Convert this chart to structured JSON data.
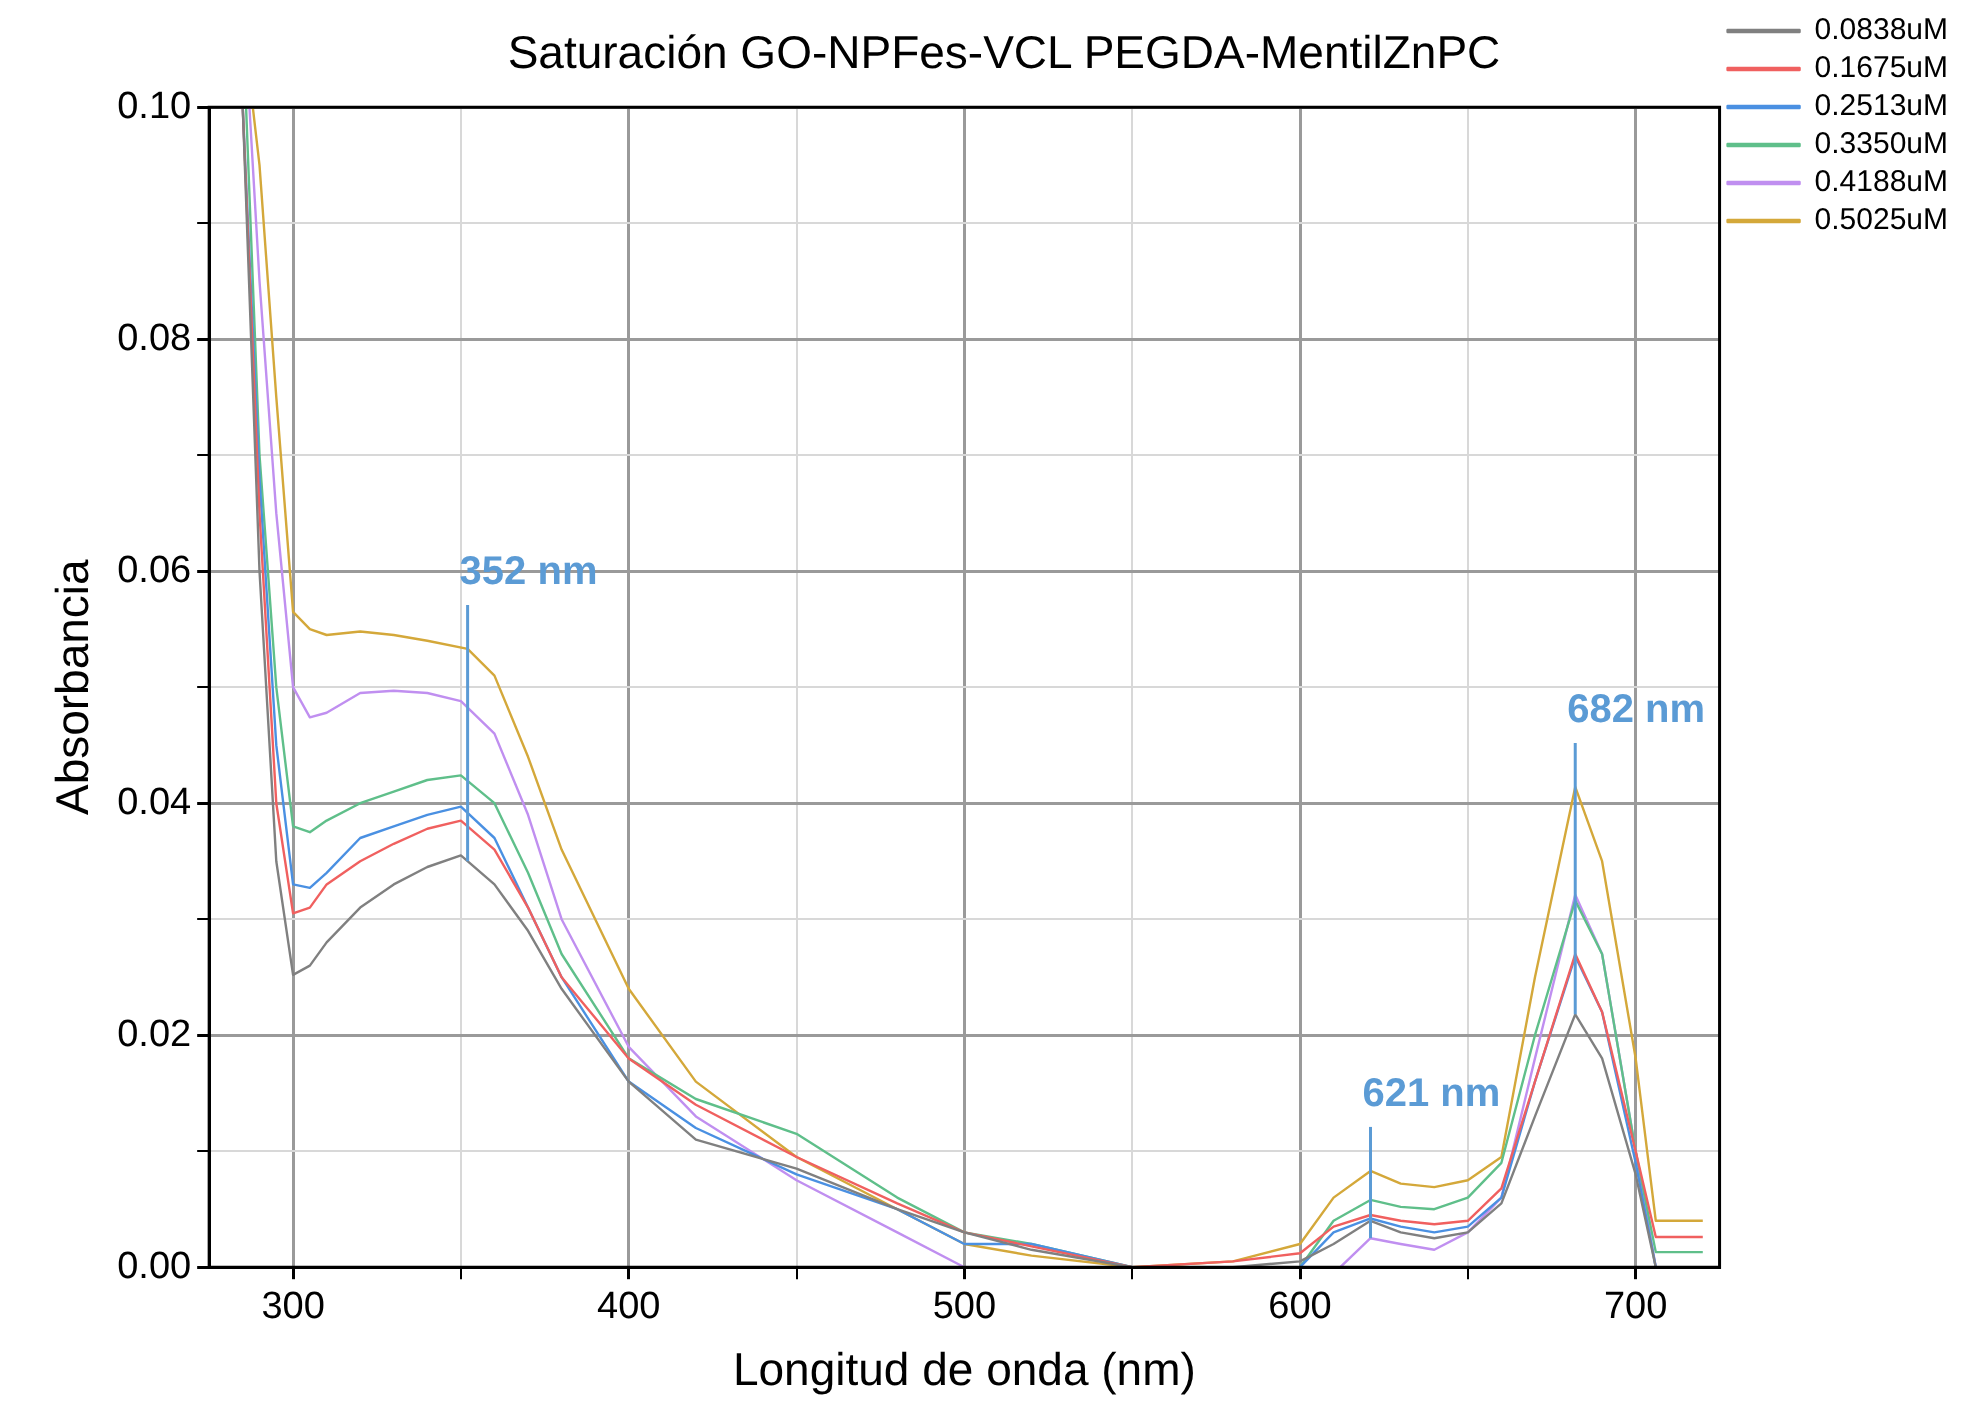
{
  "chart_data": {
    "type": "line",
    "title": "Saturación GO-NPFes-VCL PEGDA-MentilZnPC",
    "xlabel": "Longitud de onda (nm)",
    "ylabel": "Absorbancia",
    "xlim": [
      275,
      725
    ],
    "ylim": [
      0,
      0.1
    ],
    "xticks": [
      300,
      {
        "value": 350,
        "label": null
      },
      400,
      {
        "value": 450,
        "label": null
      },
      500,
      {
        "value": 550,
        "label": null
      },
      600,
      {
        "value": 650,
        "label": null
      },
      700
    ],
    "yticks": [
      {
        "value": 0,
        "label": "0.00"
      },
      {
        "value": 0.01,
        "label": null
      },
      {
        "value": 0.02,
        "label": "0.02"
      },
      {
        "value": 0.03,
        "label": null
      },
      {
        "value": 0.04,
        "label": "0.04"
      },
      {
        "value": 0.05,
        "label": null
      },
      {
        "value": 0.06,
        "label": "0.06"
      },
      {
        "value": 0.07,
        "label": null
      },
      {
        "value": 0.08,
        "label": "0.08"
      },
      {
        "value": 0.09,
        "label": null
      },
      {
        "value": 0.1,
        "label": "0.10"
      }
    ],
    "grid": true,
    "legend": "top right",
    "marker": "none",
    "line_style": "solid",
    "annotations": [
      {
        "text": "352 nm",
        "x": 352,
        "y": 0.0533
      },
      {
        "text": "621 nm",
        "x": 621,
        "y": 0.0083
      },
      {
        "text": "682 nm",
        "x": 682,
        "y": 0.0414
      }
    ],
    "series": [
      {
        "name": "0.0838uM",
        "color": "#808080",
        "x": [
          285,
          290,
          295,
          300,
          305,
          310,
          320,
          330,
          340,
          350,
          360,
          370,
          380,
          400,
          420,
          450,
          480,
          500,
          520,
          550,
          580,
          600,
          610,
          621,
          630,
          640,
          650,
          660,
          670,
          682,
          690,
          700,
          706,
          720
        ],
        "values": [
          0.1,
          0.06,
          0.035,
          0.0252,
          0.026,
          0.028,
          0.031,
          0.033,
          0.0345,
          0.0355,
          0.033,
          0.029,
          0.024,
          0.016,
          0.011,
          0.0085,
          0.005,
          0.003,
          0.0015,
          0,
          0,
          0.0005,
          0.002,
          0.004,
          0.003,
          0.0025,
          0.003,
          0.0055,
          0.013,
          0.0218,
          0.018,
          0.008,
          0,
          0
        ]
      },
      {
        "name": "0.1675uM",
        "color": "#f0605f",
        "x": [
          285,
          290,
          295,
          300,
          305,
          310,
          320,
          330,
          340,
          350,
          360,
          370,
          380,
          400,
          420,
          450,
          480,
          500,
          520,
          550,
          580,
          600,
          610,
          621,
          630,
          640,
          650,
          660,
          670,
          682,
          690,
          700,
          706,
          720
        ],
        "values": [
          0.1,
          0.065,
          0.04,
          0.0305,
          0.031,
          0.033,
          0.035,
          0.0365,
          0.0378,
          0.0385,
          0.036,
          0.031,
          0.025,
          0.018,
          0.014,
          0.0095,
          0.0055,
          0.003,
          0.0018,
          0,
          0.0005,
          0.0012,
          0.0035,
          0.0045,
          0.004,
          0.0037,
          0.004,
          0.0068,
          0.016,
          0.027,
          0.022,
          0.01,
          0.0026,
          0.0026
        ]
      },
      {
        "name": "0.2513uM",
        "color": "#4a90e2",
        "x": [
          285,
          290,
          295,
          300,
          305,
          310,
          320,
          330,
          340,
          350,
          360,
          370,
          380,
          400,
          420,
          450,
          480,
          500,
          520,
          550,
          580,
          600,
          610,
          621,
          630,
          640,
          650,
          660,
          670,
          682,
          690,
          700,
          706,
          720
        ],
        "values": [
          0.1,
          0.068,
          0.045,
          0.033,
          0.0327,
          0.034,
          0.037,
          0.038,
          0.039,
          0.0397,
          0.037,
          0.031,
          0.025,
          0.016,
          0.012,
          0.008,
          0.005,
          0.002,
          0.002,
          0,
          0,
          0,
          0.003,
          0.0042,
          0.0035,
          0.003,
          0.0035,
          0.006,
          0.016,
          0.0268,
          0.022,
          0.009,
          0,
          0
        ]
      },
      {
        "name": "0.3350uM",
        "color": "#5fbf8a",
        "x": [
          286,
          290,
          295,
          300,
          305,
          310,
          320,
          330,
          340,
          350,
          360,
          370,
          380,
          400,
          420,
          450,
          480,
          500,
          520,
          550,
          580,
          600,
          610,
          621,
          630,
          640,
          650,
          660,
          670,
          682,
          690,
          700,
          706,
          720
        ],
        "values": [
          0.1,
          0.07,
          0.05,
          0.038,
          0.0375,
          0.0385,
          0.04,
          0.041,
          0.042,
          0.0424,
          0.04,
          0.034,
          0.027,
          0.018,
          0.0145,
          0.0115,
          0.006,
          0.003,
          0.002,
          0,
          0,
          0,
          0.004,
          0.0058,
          0.0052,
          0.005,
          0.006,
          0.009,
          0.02,
          0.0316,
          0.027,
          0.01,
          0.0013,
          0.0013
        ]
      },
      {
        "name": "0.4188uM",
        "color": "#c08ff0",
        "x": [
          287,
          290,
          295,
          300,
          305,
          310,
          320,
          330,
          340,
          350,
          360,
          370,
          380,
          400,
          420,
          450,
          480,
          500,
          520,
          550,
          580,
          600,
          612,
          621,
          630,
          640,
          650,
          660,
          670,
          682,
          690,
          700,
          706,
          720
        ],
        "values": [
          0.1,
          0.085,
          0.065,
          0.05,
          0.0474,
          0.0478,
          0.0495,
          0.0497,
          0.0495,
          0.0488,
          0.046,
          0.039,
          0.03,
          0.019,
          0.013,
          0.0075,
          0.003,
          0,
          null,
          null,
          null,
          null,
          0,
          0.0025,
          0.002,
          0.0015,
          0.003,
          0.006,
          0.018,
          0.0321,
          0.027,
          0.01,
          0,
          0
        ]
      },
      {
        "name": "0.5025uM",
        "color": "#d4a83a",
        "x": [
          288,
          290,
          295,
          300,
          305,
          310,
          320,
          330,
          340,
          352,
          360,
          370,
          380,
          400,
          420,
          450,
          480,
          500,
          520,
          550,
          580,
          600,
          610,
          621,
          630,
          640,
          650,
          660,
          670,
          682,
          690,
          700,
          706,
          720
        ],
        "values": [
          0.1,
          0.095,
          0.075,
          0.0565,
          0.055,
          0.0545,
          0.0548,
          0.0545,
          0.054,
          0.0533,
          0.051,
          0.044,
          0.036,
          0.024,
          0.016,
          0.0095,
          0.005,
          0.002,
          0.001,
          0,
          0.0005,
          0.002,
          0.006,
          0.0083,
          0.0072,
          0.0069,
          0.0075,
          0.0095,
          0.025,
          0.0414,
          0.035,
          0.018,
          0.004,
          0.004
        ]
      }
    ]
  }
}
